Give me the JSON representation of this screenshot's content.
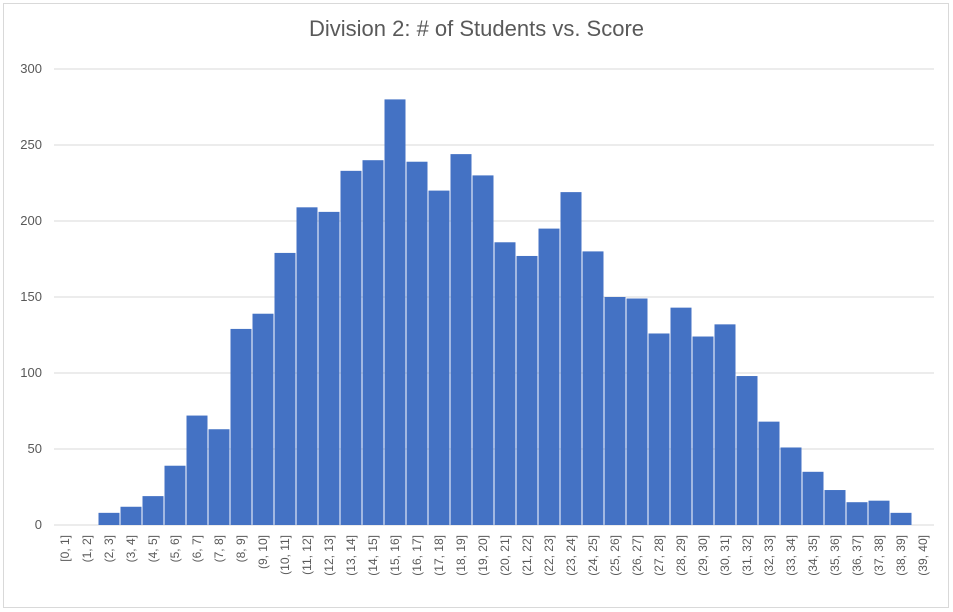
{
  "chart_data": {
    "type": "bar",
    "title": "Division 2: # of Students vs. Score",
    "xlabel": "",
    "ylabel": "",
    "ylim": [
      0,
      300
    ],
    "yticks": [
      0,
      50,
      100,
      150,
      200,
      250,
      300
    ],
    "grid": true,
    "legend": "none",
    "bar_color": "#4472c4",
    "grid_color": "#d9d9d9",
    "categories": [
      "[0, 1]",
      "(1, 2]",
      "(2, 3]",
      "(3, 4]",
      "(4, 5]",
      "(5, 6]",
      "(6, 7]",
      "(7, 8]",
      "(8, 9]",
      "(9, 10]",
      "(10, 11]",
      "(11, 12]",
      "(12, 13]",
      "(13, 14]",
      "(14, 15]",
      "(15, 16]",
      "(16, 17]",
      "(17, 18]",
      "(18, 19]",
      "(19, 20]",
      "(20, 21]",
      "(21, 22]",
      "(22, 23]",
      "(23, 24]",
      "(24, 25]",
      "(25, 26]",
      "(26, 27]",
      "(27, 28]",
      "(28, 29]",
      "(29, 30]",
      "(30, 31]",
      "(31, 32]",
      "(32, 33]",
      "(33, 34]",
      "(34, 35]",
      "(35, 36]",
      "(36, 37]",
      "(37, 38]",
      "(38, 39]",
      "(39, 40]"
    ],
    "values": [
      0,
      0,
      8,
      12,
      19,
      39,
      72,
      63,
      129,
      139,
      179,
      209,
      206,
      233,
      240,
      280,
      239,
      220,
      244,
      230,
      186,
      177,
      195,
      219,
      180,
      150,
      149,
      126,
      143,
      124,
      132,
      98,
      68,
      51,
      35,
      23,
      15,
      16,
      8,
      0
    ]
  }
}
